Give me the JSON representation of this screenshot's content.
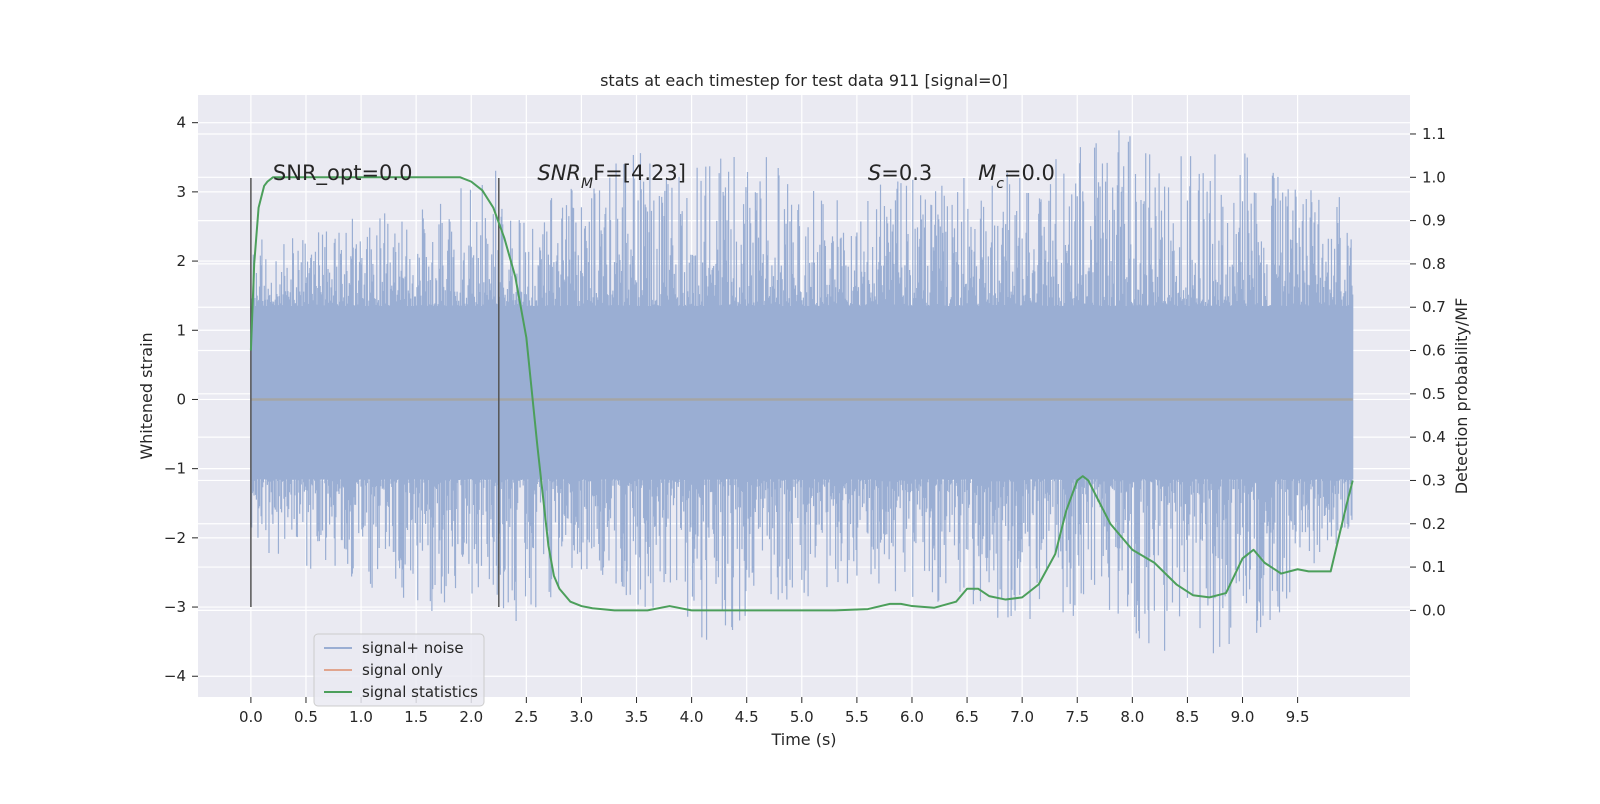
{
  "chart_data": {
    "type": "line",
    "title": "stats at each timestep for test data 911 [signal=0]",
    "xlabel": "Time (s)",
    "ylabel_left": "Whitened strain",
    "ylabel_right": "Detection probability/MF",
    "xlim": [
      -0.48,
      10.52
    ],
    "ylim_left": [
      -4.3,
      4.4
    ],
    "ylim_right": [
      -0.2,
      1.19
    ],
    "x_ticks": [
      "0.0",
      "0.5",
      "1.0",
      "1.5",
      "2.0",
      "2.5",
      "3.0",
      "3.5",
      "4.0",
      "4.5",
      "5.0",
      "5.5",
      "6.0",
      "6.5",
      "7.0",
      "7.5",
      "8.0",
      "8.5",
      "9.0",
      "9.5"
    ],
    "y_ticks_left": [
      "−4",
      "−3",
      "−2",
      "−1",
      "0",
      "1",
      "2",
      "3",
      "4"
    ],
    "y_ticks_right": [
      "0.0",
      "0.1",
      "0.2",
      "0.3",
      "0.4",
      "0.5",
      "0.6",
      "0.7",
      "0.8",
      "0.9",
      "1.0",
      "1.1"
    ],
    "grid": true,
    "legend_position": "lower-left",
    "annotations": [
      {
        "x": 0.2,
        "pre": "SNR_opt=0.0",
        "italic": "",
        "sub": "",
        "post": ""
      },
      {
        "x": 2.6,
        "pre": "",
        "italic": "SNR",
        "sub": "M",
        "post": "F=[4.23]"
      },
      {
        "x": 5.6,
        "pre": "",
        "italic": "S",
        "sub": "",
        "post": "=0.3"
      },
      {
        "x": 6.6,
        "pre": "",
        "italic": "M",
        "sub": "c",
        "post": "=0.0"
      }
    ],
    "vertical_markers": [
      {
        "x": 0.0,
        "y_from": -3,
        "y_to": 3.2
      },
      {
        "x": 2.25,
        "y_from": -3,
        "y_to": 3.2
      }
    ],
    "series": [
      {
        "name": "signal+ noise",
        "color": "#9AAED3",
        "note": "noise envelope",
        "x_range": [
          0.0,
          10.0
        ],
        "upper_envelope_samples": [
          [
            0,
            2.4
          ],
          [
            0.3,
            2.3
          ],
          [
            0.8,
            2.6
          ],
          [
            1.2,
            2.7
          ],
          [
            1.7,
            2.8
          ],
          [
            2.2,
            3.6
          ],
          [
            2.4,
            2.7
          ],
          [
            3.1,
            3.2
          ],
          [
            3.5,
            3.65
          ],
          [
            4.7,
            3.5
          ],
          [
            5.2,
            3.05
          ],
          [
            6.3,
            3.25
          ],
          [
            7.2,
            3.3
          ],
          [
            7.5,
            4.0
          ],
          [
            7.9,
            4.05
          ],
          [
            8.3,
            3.5
          ],
          [
            9.0,
            3.6
          ],
          [
            9.5,
            3.1
          ],
          [
            10.0,
            3.2
          ]
        ],
        "lower_envelope_samples": [
          [
            0,
            -2.2
          ],
          [
            0.5,
            -2.5
          ],
          [
            1.0,
            -2.6
          ],
          [
            1.4,
            -3.3
          ],
          [
            1.9,
            -2.8
          ],
          [
            2.5,
            -3.3
          ],
          [
            3.0,
            -2.5
          ],
          [
            4.1,
            -3.5
          ],
          [
            4.3,
            -3.55
          ],
          [
            5.5,
            -2.6
          ],
          [
            6.5,
            -3.1
          ],
          [
            7.0,
            -3.2
          ],
          [
            8.8,
            -3.85
          ],
          [
            9.2,
            -3.35
          ],
          [
            10.0,
            -2.0
          ]
        ]
      },
      {
        "name": "signal only",
        "color": "#E1A58E",
        "x": [
          0.0,
          10.0
        ],
        "y": [
          0.0,
          0.0
        ]
      },
      {
        "name": "signal statistics",
        "color": "#4C9F5B",
        "axis": "right",
        "x": [
          0.0,
          0.03,
          0.07,
          0.12,
          0.15,
          0.2,
          0.4,
          0.8,
          1.2,
          1.6,
          1.9,
          2.0,
          2.1,
          2.2,
          2.3,
          2.4,
          2.5,
          2.6,
          2.7,
          2.75,
          2.8,
          2.9,
          3.0,
          3.1,
          3.3,
          3.6,
          3.8,
          4.0,
          4.3,
          4.7,
          5.0,
          5.3,
          5.6,
          5.8,
          5.9,
          6.0,
          6.2,
          6.4,
          6.5,
          6.6,
          6.7,
          6.85,
          7.0,
          7.15,
          7.3,
          7.4,
          7.5,
          7.55,
          7.6,
          7.7,
          7.8,
          8.0,
          8.2,
          8.4,
          8.55,
          8.7,
          8.85,
          9.0,
          9.1,
          9.2,
          9.35,
          9.5,
          9.6,
          9.8,
          9.95,
          10.0
        ],
        "y": [
          0.6,
          0.8,
          0.93,
          0.98,
          0.99,
          1.0,
          1.0,
          1.0,
          1.0,
          1.0,
          1.0,
          0.99,
          0.97,
          0.93,
          0.86,
          0.77,
          0.63,
          0.38,
          0.15,
          0.08,
          0.05,
          0.02,
          0.01,
          0.005,
          0.0,
          0.0,
          0.01,
          0.0,
          0.0,
          0.0,
          0.0,
          0.0,
          0.003,
          0.015,
          0.015,
          0.01,
          0.006,
          0.02,
          0.05,
          0.05,
          0.033,
          0.025,
          0.03,
          0.06,
          0.13,
          0.23,
          0.3,
          0.31,
          0.3,
          0.25,
          0.2,
          0.14,
          0.11,
          0.06,
          0.035,
          0.03,
          0.04,
          0.12,
          0.14,
          0.11,
          0.085,
          0.095,
          0.09,
          0.09,
          0.25,
          0.3
        ]
      }
    ]
  },
  "legend": {
    "items": [
      {
        "label": "signal+ noise",
        "color": "#9AAED3"
      },
      {
        "label": "signal only",
        "color": "#E1A58E"
      },
      {
        "label": "signal statistics",
        "color": "#4C9F5B"
      }
    ]
  }
}
